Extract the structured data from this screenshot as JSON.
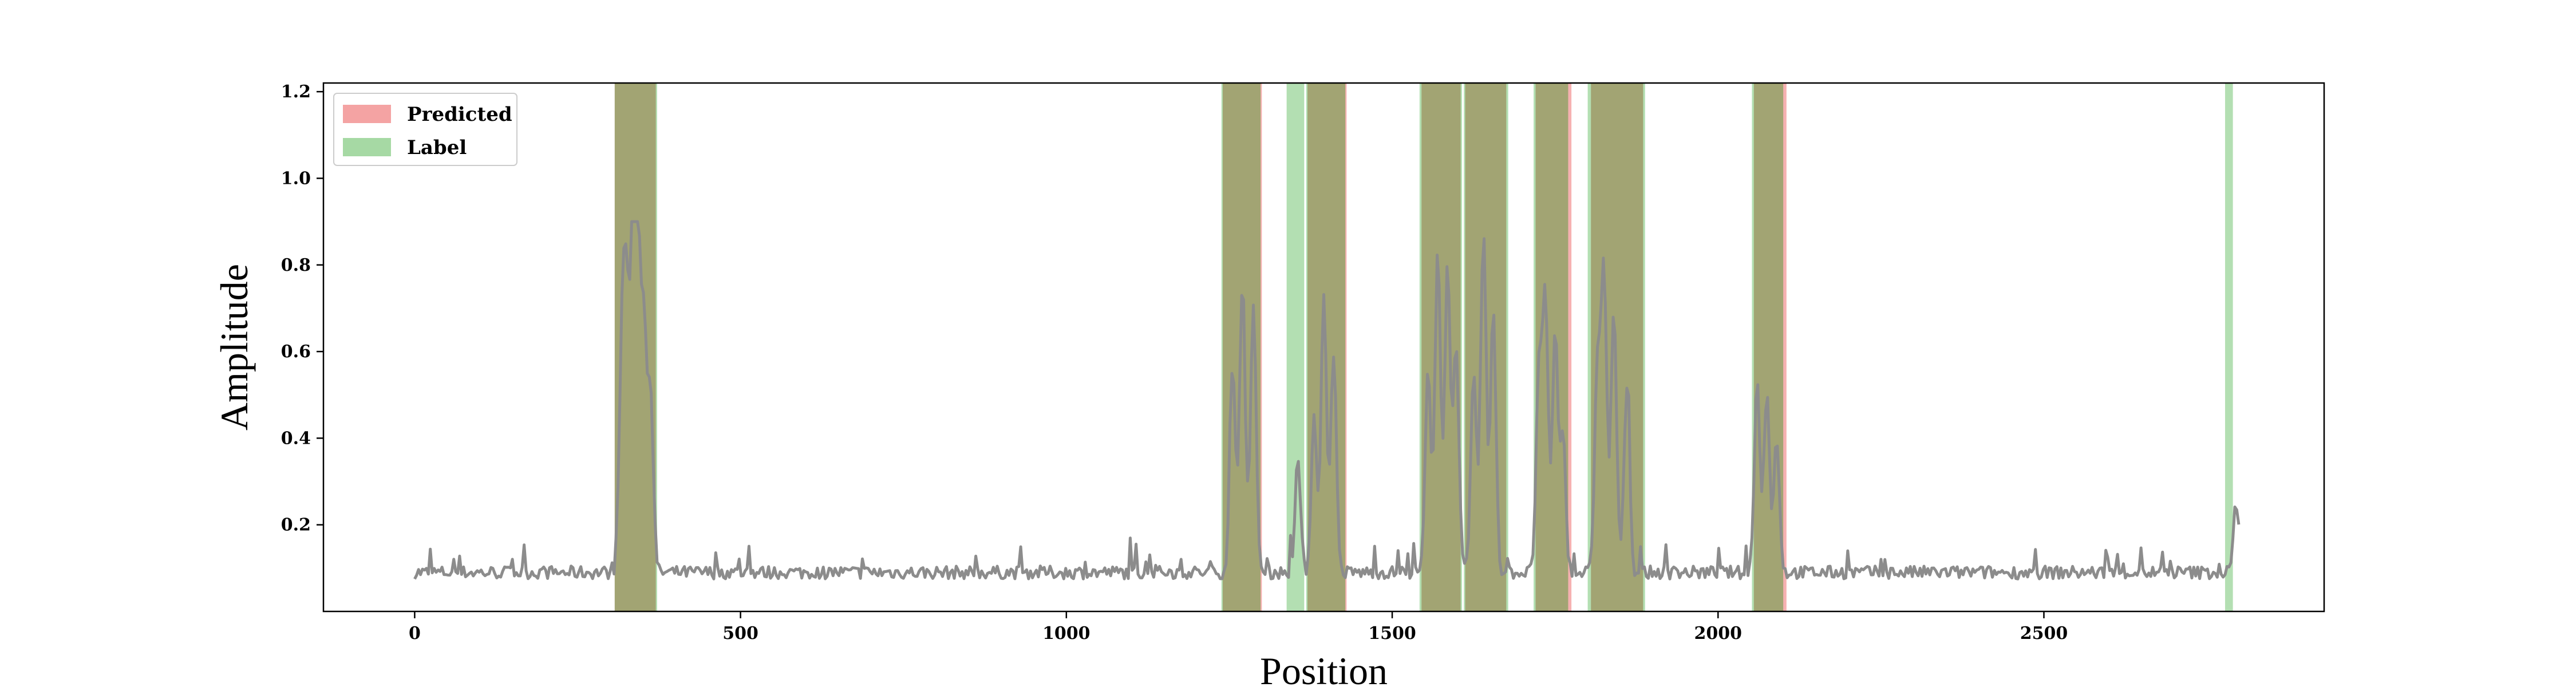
{
  "chart_data": {
    "type": "line",
    "title": "",
    "xlabel": "Position",
    "ylabel": "Amplitude",
    "xlim": [
      -140,
      2930
    ],
    "ylim": [
      0.0,
      1.22
    ],
    "x_ticks": [
      0,
      500,
      1000,
      1500,
      2000,
      2500
    ],
    "y_ticks": [
      0.2,
      0.4,
      0.6,
      0.8,
      1.0,
      1.2
    ],
    "x_tick_labels": [
      "0",
      "500",
      "1000",
      "1500",
      "2000",
      "2500"
    ],
    "y_tick_labels": [
      "0.2",
      "0.4",
      "0.6",
      "0.8",
      "1.0",
      "1.2"
    ],
    "grid": false,
    "legend": {
      "placement": "top-left",
      "entries": [
        {
          "label": "Predicted",
          "color": "#f4a3a3"
        },
        {
          "label": "Label",
          "color": "#a6d9a4"
        }
      ]
    },
    "predicted_regions": [
      [
        307,
        370
      ],
      [
        1240,
        1300
      ],
      [
        1370,
        1430
      ],
      [
        1545,
        1605
      ],
      [
        1612,
        1675
      ],
      [
        1720,
        1775
      ],
      [
        1805,
        1885
      ],
      [
        2055,
        2105
      ]
    ],
    "label_regions": [
      [
        307,
        372
      ],
      [
        1238,
        1298
      ],
      [
        1338,
        1365
      ],
      [
        1368,
        1428
      ],
      [
        1542,
        1607
      ],
      [
        1610,
        1678
      ],
      [
        1717,
        1770
      ],
      [
        1800,
        1888
      ],
      [
        2052,
        2100
      ],
      [
        2778,
        2790
      ]
    ],
    "series": [
      {
        "color": "#8c8c8c",
        "x_start": 0,
        "x_end": 2800,
        "baseline": 0.09,
        "peaks": [
          [
            318,
            0.58
          ],
          [
            325,
            0.66
          ],
          [
            335,
            0.85
          ],
          [
            343,
            0.75
          ],
          [
            352,
            0.62
          ],
          [
            362,
            0.5
          ],
          [
            1255,
            0.56
          ],
          [
            1270,
            0.76
          ],
          [
            1287,
            0.7
          ],
          [
            1355,
            0.35
          ],
          [
            1380,
            0.45
          ],
          [
            1395,
            0.72
          ],
          [
            1410,
            0.6
          ],
          [
            1555,
            0.55
          ],
          [
            1570,
            0.84
          ],
          [
            1585,
            0.8
          ],
          [
            1598,
            0.6
          ],
          [
            1625,
            0.55
          ],
          [
            1640,
            0.87
          ],
          [
            1655,
            0.7
          ],
          [
            1725,
            0.55
          ],
          [
            1735,
            0.72
          ],
          [
            1750,
            0.65
          ],
          [
            1762,
            0.4
          ],
          [
            1815,
            0.58
          ],
          [
            1825,
            0.78
          ],
          [
            1840,
            0.7
          ],
          [
            1860,
            0.52
          ],
          [
            2060,
            0.53
          ],
          [
            2075,
            0.5
          ],
          [
            2090,
            0.4
          ],
          [
            2795,
            0.25
          ]
        ]
      }
    ]
  }
}
